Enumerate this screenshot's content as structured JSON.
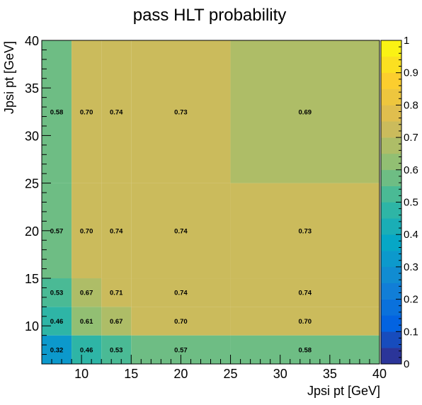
{
  "chart_data": {
    "type": "heatmap",
    "title": "pass HLT probability",
    "xlabel": "Jpsi pt [GeV]",
    "ylabel": "Jpsi pt [GeV]",
    "xlim": [
      6,
      40
    ],
    "ylim": [
      6,
      40
    ],
    "x_edges": [
      6,
      9,
      12,
      15,
      25,
      40
    ],
    "y_edges": [
      6,
      9,
      12,
      15,
      25,
      40
    ],
    "x_tick_labels": [
      "10",
      "15",
      "20",
      "25",
      "30",
      "35",
      "40"
    ],
    "x_tick_values": [
      10,
      15,
      20,
      25,
      30,
      35,
      40
    ],
    "y_tick_labels": [
      "10",
      "15",
      "20",
      "25",
      "30",
      "35",
      "40"
    ],
    "y_tick_values": [
      10,
      15,
      20,
      25,
      30,
      35,
      40
    ],
    "values": [
      [
        0.32,
        0.46,
        0.53,
        0.57,
        0.58
      ],
      [
        0.46,
        0.61,
        0.67,
        0.7,
        0.7
      ],
      [
        0.53,
        0.67,
        0.71,
        0.74,
        0.74
      ],
      [
        0.57,
        0.7,
        0.74,
        0.74,
        0.73
      ],
      [
        0.58,
        0.7,
        0.74,
        0.73,
        0.69
      ]
    ],
    "cell_labels": [
      [
        "0.32",
        "0.46",
        "0.53",
        "0.57",
        "0.58"
      ],
      [
        "0.46",
        "0.61",
        "0.67",
        "0.70",
        "0.70"
      ],
      [
        "0.53",
        "0.67",
        "0.71",
        "0.74",
        "0.74"
      ],
      [
        "0.57",
        "0.70",
        "0.74",
        "0.74",
        "0.73"
      ],
      [
        "0.58",
        "0.70",
        "0.74",
        "0.73",
        "0.69"
      ]
    ],
    "zlim": [
      0,
      1
    ],
    "colorbar_labels": [
      "0",
      "0.1",
      "0.2",
      "0.3",
      "0.4",
      "0.5",
      "0.6",
      "0.7",
      "0.8",
      "0.9",
      "1"
    ],
    "colorbar_values": [
      0,
      0.1,
      0.2,
      0.3,
      0.4,
      0.5,
      0.6,
      0.7,
      0.8,
      0.9,
      1
    ],
    "colormap": [
      "#352a87",
      "#0363e1",
      "#1485d4",
      "#06a7c6",
      "#38b99e",
      "#92bf73",
      "#d9ba56",
      "#fcce2e",
      "#f9fb0e"
    ],
    "colorbar_levels": 20,
    "grid": false,
    "legend": "colorbar-right"
  }
}
